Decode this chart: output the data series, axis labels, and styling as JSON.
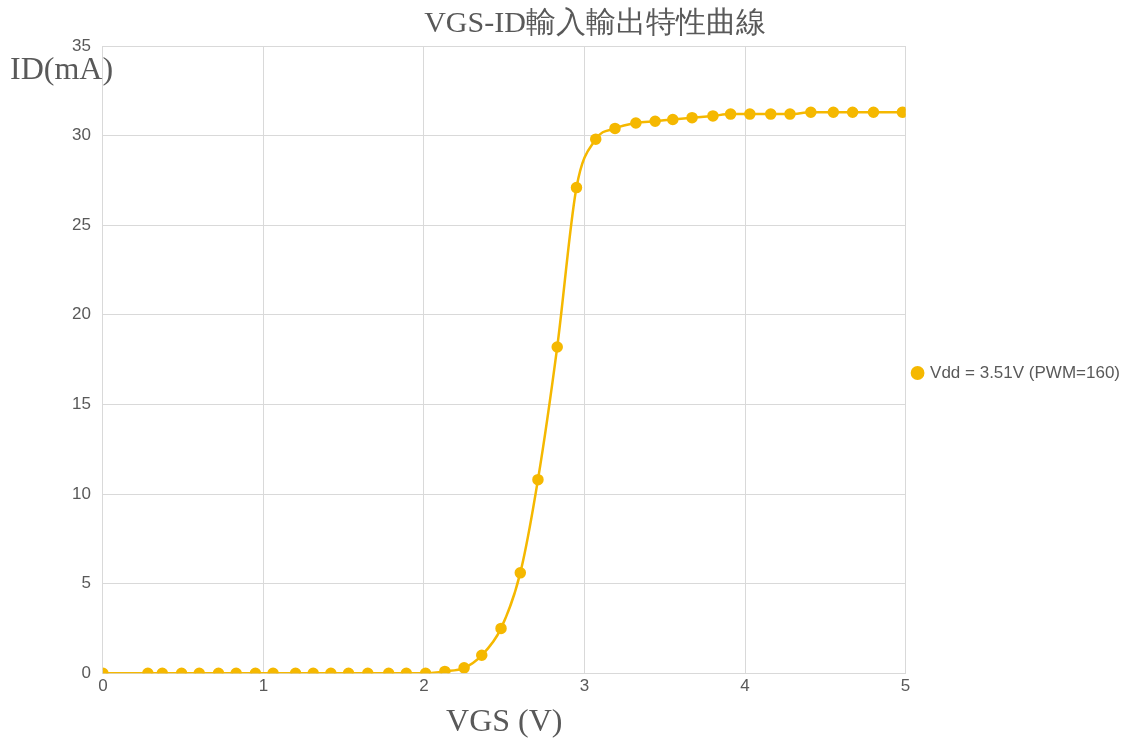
{
  "chart_data": {
    "type": "line",
    "title": "VGS-ID輸入輸出特性曲線",
    "xlabel": "VGS (V)",
    "ylabel": "ID(mA)",
    "xlim": [
      0,
      5
    ],
    "xticks": [
      0,
      1,
      2,
      3,
      4,
      5
    ],
    "ylim": [
      0,
      35
    ],
    "yticks": [
      0,
      5,
      10,
      15,
      20,
      25,
      30,
      35
    ],
    "grid": true,
    "legend": "right",
    "marker": "circle",
    "line_style": "solid",
    "series": [
      {
        "name": "Vdd = 3.51V (PWM=160)",
        "color": "#f5b800",
        "x": [
          0,
          0.28,
          0.37,
          0.49,
          0.6,
          0.72,
          0.83,
          0.95,
          1.06,
          1.2,
          1.31,
          1.42,
          1.53,
          1.65,
          1.78,
          1.89,
          2.01,
          2.13,
          2.25,
          2.36,
          2.48,
          2.6,
          2.71,
          2.83,
          2.95,
          3.07,
          3.19,
          3.32,
          3.44,
          3.55,
          3.67,
          3.8,
          3.91,
          4.03,
          4.16,
          4.28,
          4.41,
          4.55,
          4.67,
          4.8,
          4.98
        ],
        "values": [
          0,
          0,
          0,
          0,
          0,
          0,
          0,
          0,
          0,
          0,
          0,
          0,
          0,
          0,
          0,
          0,
          0,
          0.1,
          0.3,
          1.0,
          2.5,
          5.6,
          10.8,
          18.2,
          27.1,
          29.8,
          30.4,
          30.7,
          30.8,
          30.9,
          31.0,
          31.1,
          31.2,
          31.2,
          31.2,
          31.2,
          31.3,
          31.3,
          31.3,
          31.3,
          31.3
        ]
      }
    ]
  }
}
